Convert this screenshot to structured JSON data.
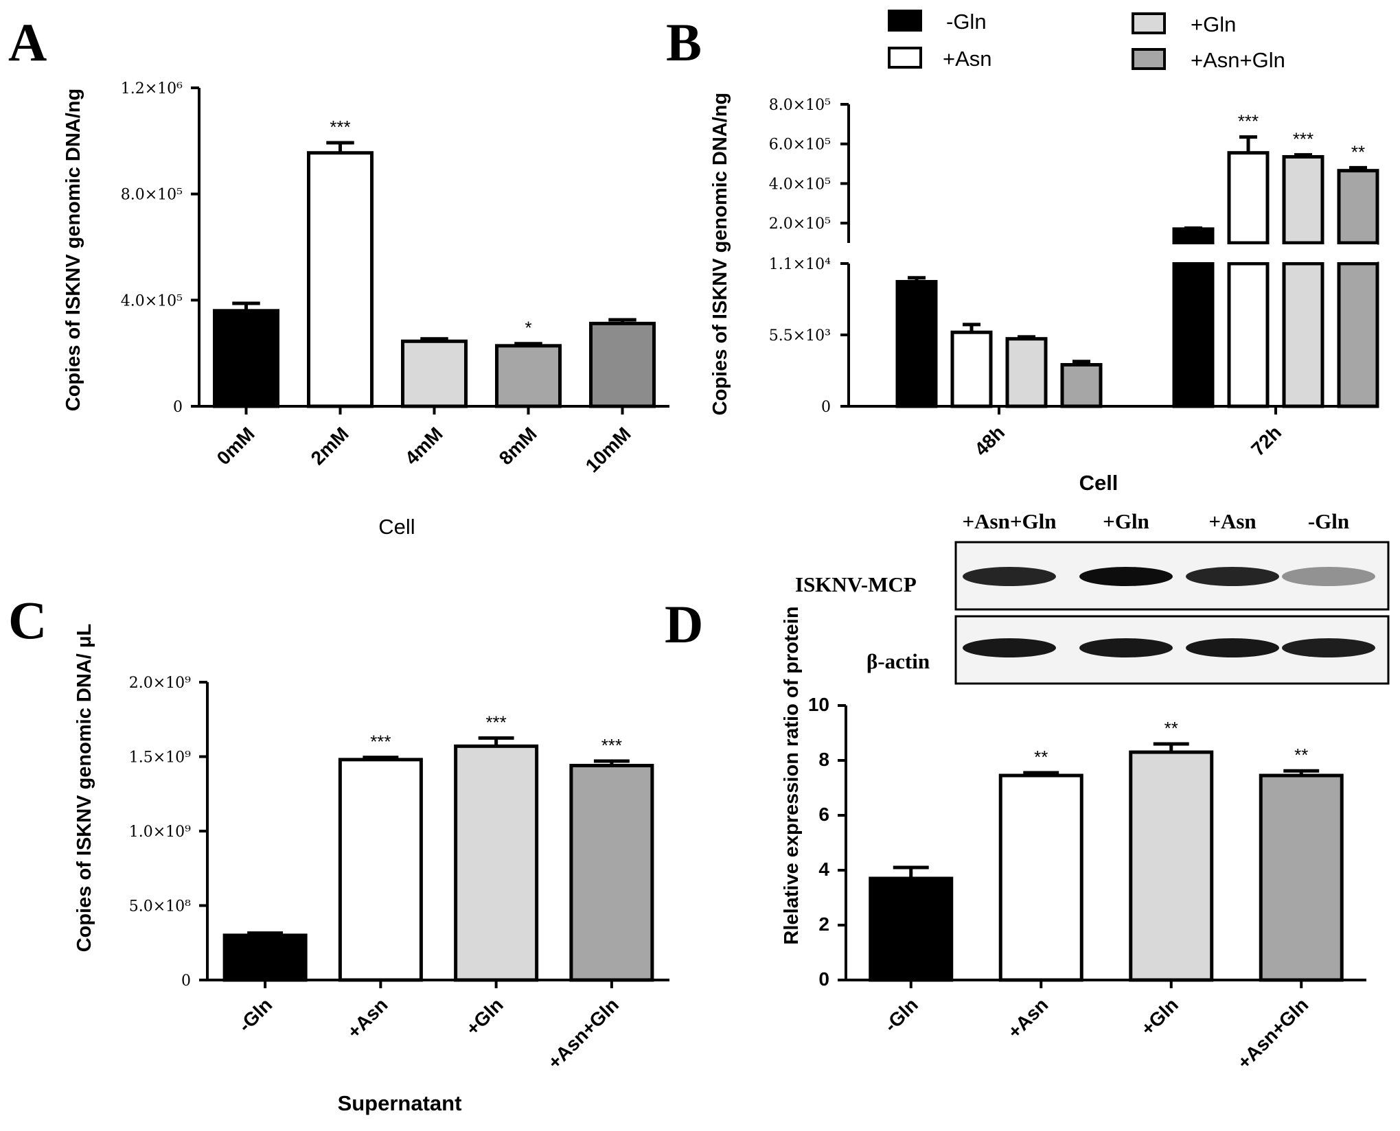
{
  "figure": {
    "panel_labels": [
      "A",
      "B",
      "C",
      "D"
    ]
  },
  "colors": {
    "-Gln": "#000000",
    "+Asn": "#ffffff",
    "+Gln": "#d9d9d9",
    "+Asn+Gln": "#a6a6a6",
    "10mM": "#8c8c8c"
  },
  "chart_data": [
    {
      "panel": "A",
      "type": "bar",
      "title": "",
      "xlabel": "Cell",
      "ylabel": "Copies of ISKNV genomic DNA/ng",
      "categories": [
        "0mM",
        "2mM",
        "4mM",
        "8mM",
        "10mM"
      ],
      "values": [
        360000,
        955000,
        245000,
        228000,
        312000
      ],
      "errors": [
        28000,
        38000,
        9000,
        8000,
        14000
      ],
      "significance": [
        "",
        "***",
        "",
        "*",
        ""
      ],
      "fills": [
        "#000000",
        "#ffffff",
        "#d9d9d9",
        "#a6a6a6",
        "#8c8c8c"
      ],
      "ylim": [
        0,
        1200000
      ],
      "yticks": [
        0,
        400000,
        800000,
        1200000
      ],
      "ytick_labels": [
        "0",
        "4.0×10⁵",
        "8.0×10⁵",
        "1.2×10⁶"
      ]
    },
    {
      "panel": "B",
      "type": "bar",
      "title": "",
      "xlabel": "Cell",
      "ylabel": "Copies of ISKNV genomic DNA/ng",
      "categories": [
        "48h",
        "72h"
      ],
      "legend": [
        "-Gln",
        "+Asn",
        "+Gln",
        "+Asn+Gln"
      ],
      "legend_placement": "top",
      "series": [
        {
          "name": "-Gln",
          "values": [
            9600,
            170000
          ],
          "errors": [
            300,
            5000
          ],
          "significance": [
            "",
            ""
          ]
        },
        {
          "name": "+Asn",
          "values": [
            5700,
            555000
          ],
          "errors": [
            600,
            80000
          ],
          "significance": [
            "",
            "***"
          ]
        },
        {
          "name": "+Gln",
          "values": [
            5200,
            535000
          ],
          "errors": [
            150,
            10000
          ],
          "significance": [
            "",
            "***"
          ]
        },
        {
          "name": "+Asn+Gln",
          "values": [
            3200,
            465000
          ],
          "errors": [
            250,
            15000
          ],
          "significance": [
            "",
            "**"
          ]
        }
      ],
      "broken_axis": {
        "lower_range": [
          0,
          11000
        ],
        "upper_range": [
          100000,
          800000
        ]
      },
      "yticks": [
        0,
        5500,
        11000,
        200000,
        400000,
        600000,
        800000
      ],
      "ytick_labels": [
        "0",
        "5.5×10³",
        "1.1×10⁴",
        "2.0×10⁵",
        "4.0×10⁵",
        "6.0×10⁵",
        "8.0×10⁵"
      ]
    },
    {
      "panel": "C",
      "type": "bar",
      "title": "",
      "xlabel": "Supernatant",
      "ylabel": "Copies of ISKNV genomic DNA/ μL",
      "categories": [
        "-Gln",
        "+Asn",
        "+Gln",
        "+Asn+Gln"
      ],
      "values": [
        300000000,
        1480000000,
        1570000000,
        1440000000
      ],
      "errors": [
        15000000,
        15000000,
        55000000,
        30000000
      ],
      "significance": [
        "",
        "***",
        "***",
        "***"
      ],
      "fills": [
        "#000000",
        "#ffffff",
        "#d9d9d9",
        "#a6a6a6"
      ],
      "ylim": [
        0,
        2000000000
      ],
      "yticks": [
        0,
        500000000,
        1000000000,
        1500000000,
        2000000000
      ],
      "ytick_labels": [
        "0",
        "5.0×10⁸",
        "1.0×10⁹",
        "1.5×10⁹",
        "2.0×10⁹"
      ]
    },
    {
      "panel": "D",
      "type": "bar",
      "title": "",
      "xlabel": "",
      "ylabel": "Rlelative  expression ratio of protein",
      "categories": [
        "-Gln",
        "+Asn",
        "+Gln",
        "+Asn+Gln"
      ],
      "values": [
        3.7,
        7.45,
        8.3,
        7.45
      ],
      "errors": [
        0.4,
        0.1,
        0.3,
        0.17
      ],
      "significance": [
        "",
        "**",
        "**",
        "**"
      ],
      "fills": [
        "#000000",
        "#ffffff",
        "#d9d9d9",
        "#a6a6a6"
      ],
      "ylim": [
        0,
        10
      ],
      "yticks": [
        0,
        2,
        4,
        6,
        8,
        10
      ],
      "ytick_labels": [
        "0",
        "2",
        "4",
        "6",
        "8",
        "10"
      ]
    }
  ],
  "blot": {
    "lanes": [
      "+Asn+Gln",
      "+Gln",
      "+Asn",
      "-Gln"
    ],
    "rows": [
      {
        "label": "ISKNV-MCP",
        "band_intensity": [
          0.85,
          0.95,
          0.85,
          0.4
        ]
      },
      {
        "label": "β-actin",
        "band_intensity": [
          0.9,
          0.9,
          0.9,
          0.88
        ]
      }
    ]
  }
}
